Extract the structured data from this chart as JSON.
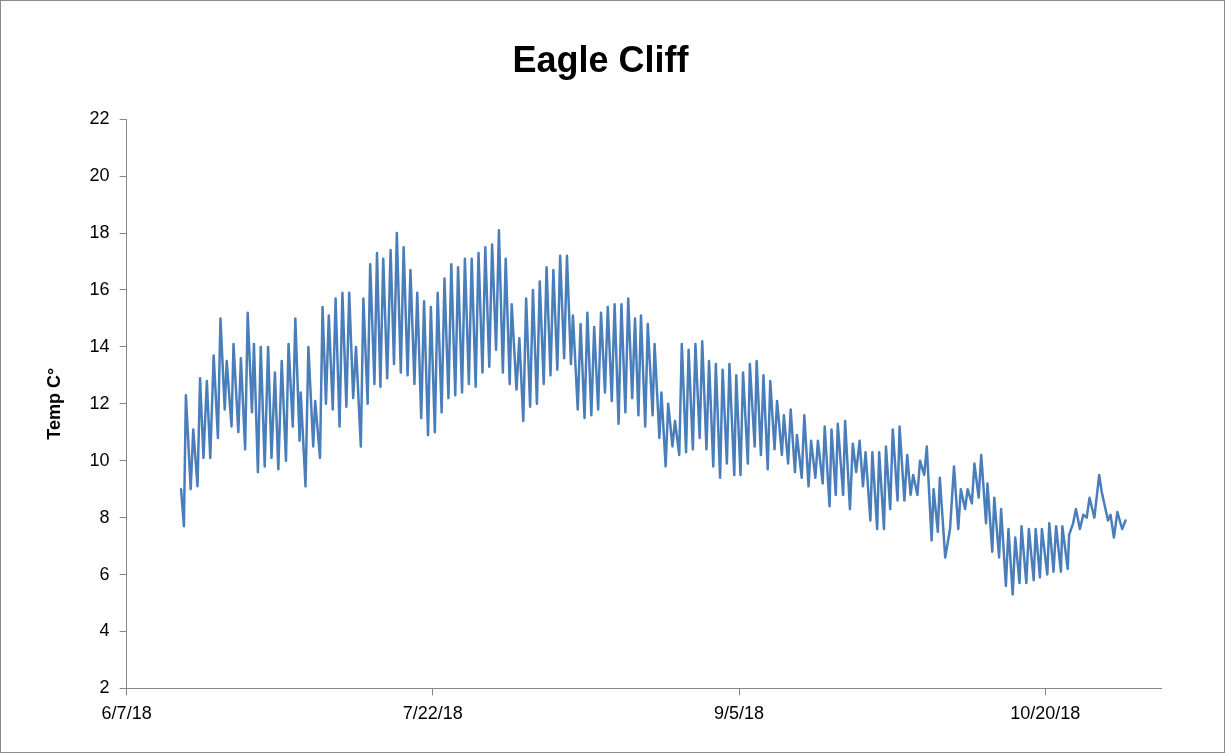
{
  "chart_data": {
    "type": "line",
    "title": "Eagle Cliff",
    "ylabel": "Temp C°",
    "xlim": [
      "2018-06-07",
      "2018-11-06"
    ],
    "xticks": [
      {
        "value": "2018-06-07",
        "label": "6/7/18"
      },
      {
        "value": "2018-07-22",
        "label": "7/22/18"
      },
      {
        "value": "2018-09-05",
        "label": "9/5/18"
      },
      {
        "value": "2018-10-20",
        "label": "10/20/18"
      }
    ],
    "ylim": [
      2,
      22
    ],
    "yticks": [
      2,
      4,
      6,
      8,
      10,
      12,
      14,
      16,
      18,
      20,
      22
    ],
    "series": [
      {
        "color": "#4a7ebb",
        "x": [
          "2018-06-15T00:00",
          "2018-06-15T10:00",
          "2018-06-15T17:00",
          "2018-06-16T10:00",
          "2018-06-16T19:00",
          "2018-06-17T10:00",
          "2018-06-17T19:00",
          "2018-06-18T07:00",
          "2018-06-18T19:00",
          "2018-06-19T07:00",
          "2018-06-19T19:00",
          "2018-06-20T10:00",
          "2018-06-20T19:00",
          "2018-06-21T10:00",
          "2018-06-21T17:00",
          "2018-06-22T10:00",
          "2018-06-22T17:00",
          "2018-06-23T10:00",
          "2018-06-23T19:00",
          "2018-06-24T10:00",
          "2018-06-24T19:00",
          "2018-06-25T10:00",
          "2018-06-25T17:00",
          "2018-06-26T07:00",
          "2018-06-26T17:00",
          "2018-06-27T07:00",
          "2018-06-27T19:00",
          "2018-06-28T07:00",
          "2018-06-28T19:00",
          "2018-06-29T07:00",
          "2018-06-29T19:00",
          "2018-06-30T10:00",
          "2018-06-30T19:00",
          "2018-07-01T10:00",
          "2018-07-01T19:00",
          "2018-07-02T10:00",
          "2018-07-02T14:00",
          "2018-07-03T07:00",
          "2018-07-03T17:00",
          "2018-07-04T10:00",
          "2018-07-04T17:00",
          "2018-07-05T10:00",
          "2018-07-05T19:00",
          "2018-07-06T07:00",
          "2018-07-06T17:00",
          "2018-07-07T07:00",
          "2018-07-07T17:00",
          "2018-07-08T07:00",
          "2018-07-08T17:00",
          "2018-07-09T07:00",
          "2018-07-09T17:00",
          "2018-07-10T07:00",
          "2018-07-10T17:00",
          "2018-07-11T10:00",
          "2018-07-11T19:00",
          "2018-07-12T10:00",
          "2018-07-12T19:00",
          "2018-07-13T10:00",
          "2018-07-13T19:00",
          "2018-07-14T07:00",
          "2018-07-14T17:00",
          "2018-07-15T07:00",
          "2018-07-15T19:00",
          "2018-07-16T07:00",
          "2018-07-16T17:00",
          "2018-07-17T07:00",
          "2018-07-17T17:00",
          "2018-07-18T07:00",
          "2018-07-18T17:00",
          "2018-07-19T07:00",
          "2018-07-19T17:00",
          "2018-07-20T07:00",
          "2018-07-20T17:00",
          "2018-07-21T07:00",
          "2018-07-21T17:00",
          "2018-07-22T07:00",
          "2018-07-22T17:00",
          "2018-07-23T07:00",
          "2018-07-23T17:00",
          "2018-07-24T07:00",
          "2018-07-24T17:00",
          "2018-07-25T07:00",
          "2018-07-25T17:00",
          "2018-07-26T07:00",
          "2018-07-26T17:00",
          "2018-07-27T07:00",
          "2018-07-27T17:00",
          "2018-07-28T07:00",
          "2018-07-28T17:00",
          "2018-07-29T07:00",
          "2018-07-29T17:00",
          "2018-07-30T07:00",
          "2018-07-30T17:00",
          "2018-07-31T07:00",
          "2018-07-31T17:00",
          "2018-08-01T07:00",
          "2018-08-01T17:00",
          "2018-08-02T07:00",
          "2018-08-02T14:00",
          "2018-08-03T07:00",
          "2018-08-03T17:00",
          "2018-08-04T07:00",
          "2018-08-04T17:00",
          "2018-08-05T07:00",
          "2018-08-05T17:00",
          "2018-08-06T07:00",
          "2018-08-06T17:00",
          "2018-08-07T07:00",
          "2018-08-07T17:00",
          "2018-08-08T07:00",
          "2018-08-08T17:00",
          "2018-08-09T07:00",
          "2018-08-09T17:00",
          "2018-08-10T07:00",
          "2018-08-10T17:00",
          "2018-08-11T07:00",
          "2018-08-11T14:00",
          "2018-08-12T07:00",
          "2018-08-12T17:00",
          "2018-08-13T07:00",
          "2018-08-13T17:00",
          "2018-08-14T07:00",
          "2018-08-14T17:00",
          "2018-08-15T07:00",
          "2018-08-15T17:00",
          "2018-08-16T07:00",
          "2018-08-16T17:00",
          "2018-08-17T07:00",
          "2018-08-17T17:00",
          "2018-08-18T07:00",
          "2018-08-18T17:00",
          "2018-08-19T07:00",
          "2018-08-19T17:00",
          "2018-08-20T07:00",
          "2018-08-20T17:00",
          "2018-08-21T05:00",
          "2018-08-21T14:00",
          "2018-08-22T05:00",
          "2018-08-22T14:00",
          "2018-08-23T07:00",
          "2018-08-23T14:00",
          "2018-08-24T07:00",
          "2018-08-24T14:00",
          "2018-08-25T05:00",
          "2018-08-25T14:00",
          "2018-08-26T05:00",
          "2018-08-26T14:00",
          "2018-08-27T05:00",
          "2018-08-27T14:00",
          "2018-08-28T05:00",
          "2018-08-28T14:00",
          "2018-08-29T05:00",
          "2018-08-29T14:00",
          "2018-08-30T05:00",
          "2018-08-30T14:00",
          "2018-08-31T05:00",
          "2018-08-31T14:00",
          "2018-09-01T05:00",
          "2018-09-01T14:00",
          "2018-09-02T05:00",
          "2018-09-02T14:00",
          "2018-09-03T05:00",
          "2018-09-03T14:00",
          "2018-09-04T07:00",
          "2018-09-04T14:00",
          "2018-09-05T05:00",
          "2018-09-05T14:00",
          "2018-09-06T07:00",
          "2018-09-06T14:00",
          "2018-09-07T07:00",
          "2018-09-07T14:00",
          "2018-09-08T05:00",
          "2018-09-08T14:00",
          "2018-09-09T05:00",
          "2018-09-09T14:00",
          "2018-09-10T05:00",
          "2018-09-10T14:00",
          "2018-09-11T07:00",
          "2018-09-11T14:00",
          "2018-09-12T05:00",
          "2018-09-12T14:00",
          "2018-09-13T05:00",
          "2018-09-13T12:00",
          "2018-09-14T05:00",
          "2018-09-14T14:00",
          "2018-09-15T05:00",
          "2018-09-15T14:00",
          "2018-09-16T05:00",
          "2018-09-16T14:00",
          "2018-09-17T07:00",
          "2018-09-17T14:00",
          "2018-09-18T07:00",
          "2018-09-18T14:00",
          "2018-09-19T05:00",
          "2018-09-19T12:00",
          "2018-09-20T07:00",
          "2018-09-20T14:00",
          "2018-09-21T07:00",
          "2018-09-21T17:00",
          "2018-09-22T05:00",
          "2018-09-22T17:00",
          "2018-09-23T05:00",
          "2018-09-23T14:00",
          "2018-09-24T07:00",
          "2018-09-24T14:00",
          "2018-09-25T07:00",
          "2018-09-25T14:00",
          "2018-09-26T07:00",
          "2018-09-26T14:00",
          "2018-09-27T05:00",
          "2018-09-27T14:00",
          "2018-09-28T07:00",
          "2018-09-28T14:00",
          "2018-09-29T07:00",
          "2018-09-29T17:00",
          "2018-09-30T05:00",
          "2018-09-30T14:00",
          "2018-10-01T05:00",
          "2018-10-01T14:00",
          "2018-10-02T05:00",
          "2018-10-02T14:00",
          "2018-10-03T07:00",
          "2018-10-03T14:00",
          "2018-10-04T05:00",
          "2018-10-04T12:00",
          "2018-10-05T07:00",
          "2018-10-06T00:00",
          "2018-10-06T14:00",
          "2018-10-07T05:00",
          "2018-10-07T14:00",
          "2018-10-08T05:00",
          "2018-10-08T14:00",
          "2018-10-09T05:00",
          "2018-10-09T14:00",
          "2018-10-10T05:00",
          "2018-10-10T14:00",
          "2018-10-11T07:00",
          "2018-10-11T12:00",
          "2018-10-12T05:00",
          "2018-10-12T12:00",
          "2018-10-13T05:00",
          "2018-10-13T12:00",
          "2018-10-14T05:00",
          "2018-10-14T14:00",
          "2018-10-15T05:00",
          "2018-10-15T14:00",
          "2018-10-16T05:00",
          "2018-10-16T12:00",
          "2018-10-17T05:00",
          "2018-10-17T14:00",
          "2018-10-18T07:00",
          "2018-10-18T14:00",
          "2018-10-19T05:00",
          "2018-10-19T12:00",
          "2018-10-20T07:00",
          "2018-10-20T14:00",
          "2018-10-21T05:00",
          "2018-10-21T14:00",
          "2018-10-22T07:00",
          "2018-10-22T12:00",
          "2018-10-23T07:00",
          "2018-10-23T12:00",
          "2018-10-24T02:00",
          "2018-10-24T12:00",
          "2018-10-25T02:00",
          "2018-10-25T14:00",
          "2018-10-26T02:00",
          "2018-10-26T12:00",
          "2018-10-27T05:00",
          "2018-10-27T22:00",
          "2018-10-28T07:00",
          "2018-10-29T05:00",
          "2018-10-29T14:00",
          "2018-10-30T02:00",
          "2018-10-30T14:00",
          "2018-10-31T07:00",
          "2018-10-31T19:00"
        ],
        "values": [
          9.0,
          7.7,
          12.3,
          9.0,
          11.1,
          9.1,
          12.9,
          10.1,
          12.8,
          10.1,
          13.7,
          10.8,
          15.0,
          11.8,
          13.5,
          11.2,
          14.1,
          11.0,
          13.6,
          10.4,
          15.2,
          11.7,
          14.1,
          9.6,
          14.0,
          9.8,
          14.0,
          10.1,
          13.1,
          9.7,
          13.5,
          10.0,
          14.1,
          11.2,
          15.0,
          10.7,
          12.4,
          9.1,
          14.0,
          10.5,
          12.1,
          10.1,
          15.4,
          12.0,
          15.1,
          11.8,
          15.7,
          11.2,
          15.9,
          11.9,
          15.9,
          12.2,
          14.0,
          10.5,
          15.7,
          12.0,
          16.9,
          12.7,
          17.3,
          12.6,
          17.1,
          12.9,
          17.4,
          13.4,
          18.0,
          13.1,
          17.5,
          13.0,
          16.7,
          12.7,
          15.9,
          11.5,
          15.6,
          10.9,
          15.4,
          11.0,
          15.9,
          11.7,
          16.4,
          12.2,
          16.9,
          12.3,
          16.8,
          12.4,
          17.1,
          12.7,
          17.1,
          12.6,
          17.3,
          13.1,
          17.5,
          13.3,
          17.6,
          13.9,
          18.1,
          13.1,
          17.1,
          12.7,
          15.5,
          12.5,
          14.3,
          11.4,
          15.7,
          11.9,
          16.0,
          12.0,
          16.3,
          12.7,
          16.8,
          13.0,
          16.7,
          13.2,
          17.2,
          13.6,
          17.2,
          13.4,
          15.1,
          11.8,
          14.8,
          11.5,
          15.2,
          11.6,
          14.7,
          11.8,
          15.2,
          12.4,
          15.4,
          12.1,
          15.5,
          11.3,
          15.5,
          11.7,
          15.7,
          12.2,
          15.0,
          11.6,
          15.1,
          11.2,
          14.8,
          11.6,
          14.1,
          10.8,
          12.4,
          9.8,
          12.0,
          10.5,
          11.4,
          10.2,
          14.1,
          10.3,
          13.9,
          10.4,
          14.1,
          10.8,
          14.2,
          10.4,
          13.5,
          9.8,
          13.4,
          9.4,
          13.2,
          9.9,
          13.4,
          9.5,
          13.0,
          9.5,
          13.1,
          9.9,
          13.4,
          10.5,
          13.5,
          10.2,
          13.0,
          9.7,
          12.8,
          10.4,
          12.1,
          10.2,
          11.6,
          9.9,
          11.8,
          9.6,
          10.9,
          9.4,
          11.6,
          9.1,
          10.7,
          9.4,
          10.7,
          9.2,
          11.2,
          8.4,
          11.1,
          8.8,
          11.3,
          8.8,
          11.4,
          8.3,
          10.6,
          9.6,
          10.7,
          9.1,
          10.3,
          7.9,
          10.3,
          7.6,
          10.3,
          7.6,
          10.5,
          8.3,
          11.1,
          8.6,
          11.2,
          8.6,
          10.2,
          8.8,
          9.5,
          8.8,
          10.0,
          9.5,
          10.5,
          7.2,
          9.0,
          7.5,
          9.4,
          6.6,
          7.6,
          9.8,
          7.6,
          9.0,
          8.3,
          9.0,
          8.5,
          9.9,
          8.7,
          10.2,
          7.8,
          9.2,
          6.8,
          8.7,
          6.6,
          8.3,
          5.6,
          7.6,
          5.3,
          7.3,
          5.7,
          7.7,
          5.7,
          7.6,
          5.8,
          7.6,
          5.9,
          7.6,
          6.0,
          7.8,
          6.1,
          7.7,
          6.1,
          7.7,
          6.2,
          7.4,
          7.8,
          8.3,
          7.6,
          8.1,
          8.0,
          8.7,
          8.0,
          9.5,
          8.9,
          7.9,
          8.1,
          7.3,
          8.2,
          7.6,
          7.9
        ]
      }
    ]
  }
}
